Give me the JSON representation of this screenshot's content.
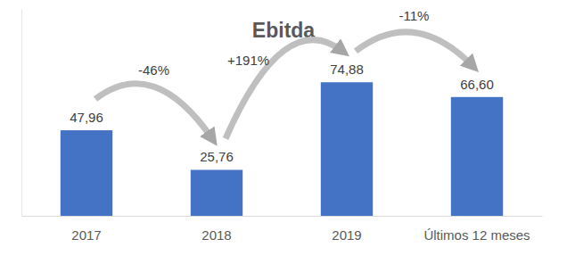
{
  "chart_data": {
    "type": "bar",
    "title": "Ebitda",
    "categories": [
      "2017",
      "2018",
      "2019",
      "Últimos 12 meses"
    ],
    "values": [
      47.96,
      25.76,
      74.88,
      66.6
    ],
    "value_labels": [
      "47,96",
      "25,76",
      "74,88",
      "66,60"
    ],
    "color": "#4472c4",
    "ylim": [
      0,
      116
    ],
    "yticks": [],
    "data_labels": true,
    "tick_labels": "x",
    "grid": false,
    "annotations": [
      "-46%",
      "+191%",
      "-11%"
    ]
  }
}
